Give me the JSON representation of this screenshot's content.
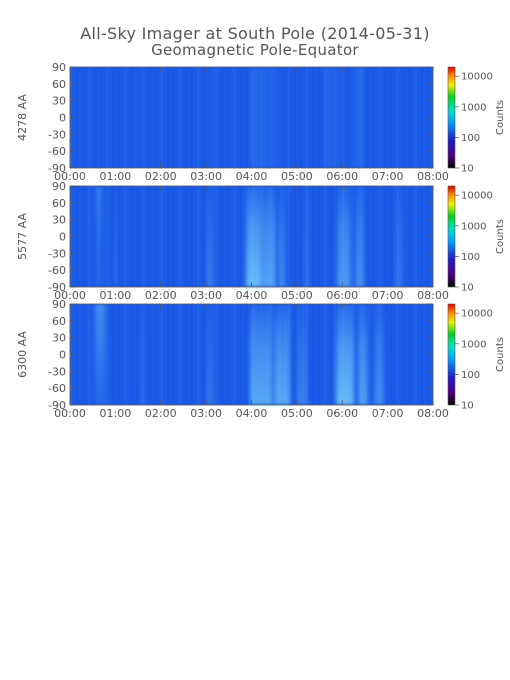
{
  "title": "All-Sky Imager at South Pole (2014-05-31)",
  "subtitle": "Geomagnetic Pole-Equator",
  "chart_data": [
    {
      "type": "heatmap",
      "panel_label": "4278 AA",
      "x_ticks": [
        "00:00",
        "01:00",
        "02:00",
        "03:00",
        "04:00",
        "05:00",
        "06:00",
        "07:00",
        "08:00"
      ],
      "xlim": [
        "00:00",
        "08:00"
      ],
      "y_ticks": [
        90,
        60,
        30,
        0,
        -30,
        -60,
        -90
      ],
      "ylim": [
        -90,
        90
      ],
      "colorbar_label": "Counts",
      "colorbar_ticks": [
        10000,
        1000,
        100,
        10
      ],
      "colorbar_scale": "log",
      "colorbar_range": [
        10,
        20000
      ],
      "brightness": "faint, uniform; slightly brighter 04:00-05:00 and 06:00-06:40"
    },
    {
      "type": "heatmap",
      "panel_label": "5577 AA",
      "x_ticks": [
        "00:00",
        "01:00",
        "02:00",
        "03:00",
        "04:00",
        "05:00",
        "06:00",
        "07:00",
        "08:00"
      ],
      "xlim": [
        "00:00",
        "08:00"
      ],
      "y_ticks": [
        90,
        60,
        30,
        0,
        -30,
        -60,
        -90
      ],
      "ylim": [
        -90,
        90
      ],
      "colorbar_label": "Counts",
      "colorbar_ticks": [
        10000,
        1000,
        100,
        10
      ],
      "colorbar_scale": "log",
      "colorbar_range": [
        10,
        20000
      ],
      "brightness": "auroral arcs 03:50-04:30 and 05:50-06:30, strongest near -30 to -90"
    },
    {
      "type": "heatmap",
      "panel_label": "6300 AA",
      "x_ticks": [
        "00:00",
        "01:00",
        "02:00",
        "03:00",
        "04:00",
        "05:00",
        "06:00",
        "07:00",
        "08:00"
      ],
      "xlim": [
        "00:00",
        "08:00"
      ],
      "y_ticks": [
        90,
        60,
        30,
        0,
        -30,
        -60,
        -90
      ],
      "ylim": [
        -90,
        90
      ],
      "colorbar_label": "Counts",
      "colorbar_ticks": [
        10000,
        1000,
        100,
        10
      ],
      "colorbar_scale": "log",
      "colorbar_range": [
        10,
        20000
      ],
      "brightness": "broad brightening 03:50-07:00, arcs around 04:15 and 06:00"
    }
  ],
  "colors": {
    "text": "#555555",
    "background_field": "#1a5ae6",
    "aurora_bright": "#6ad2f8"
  }
}
